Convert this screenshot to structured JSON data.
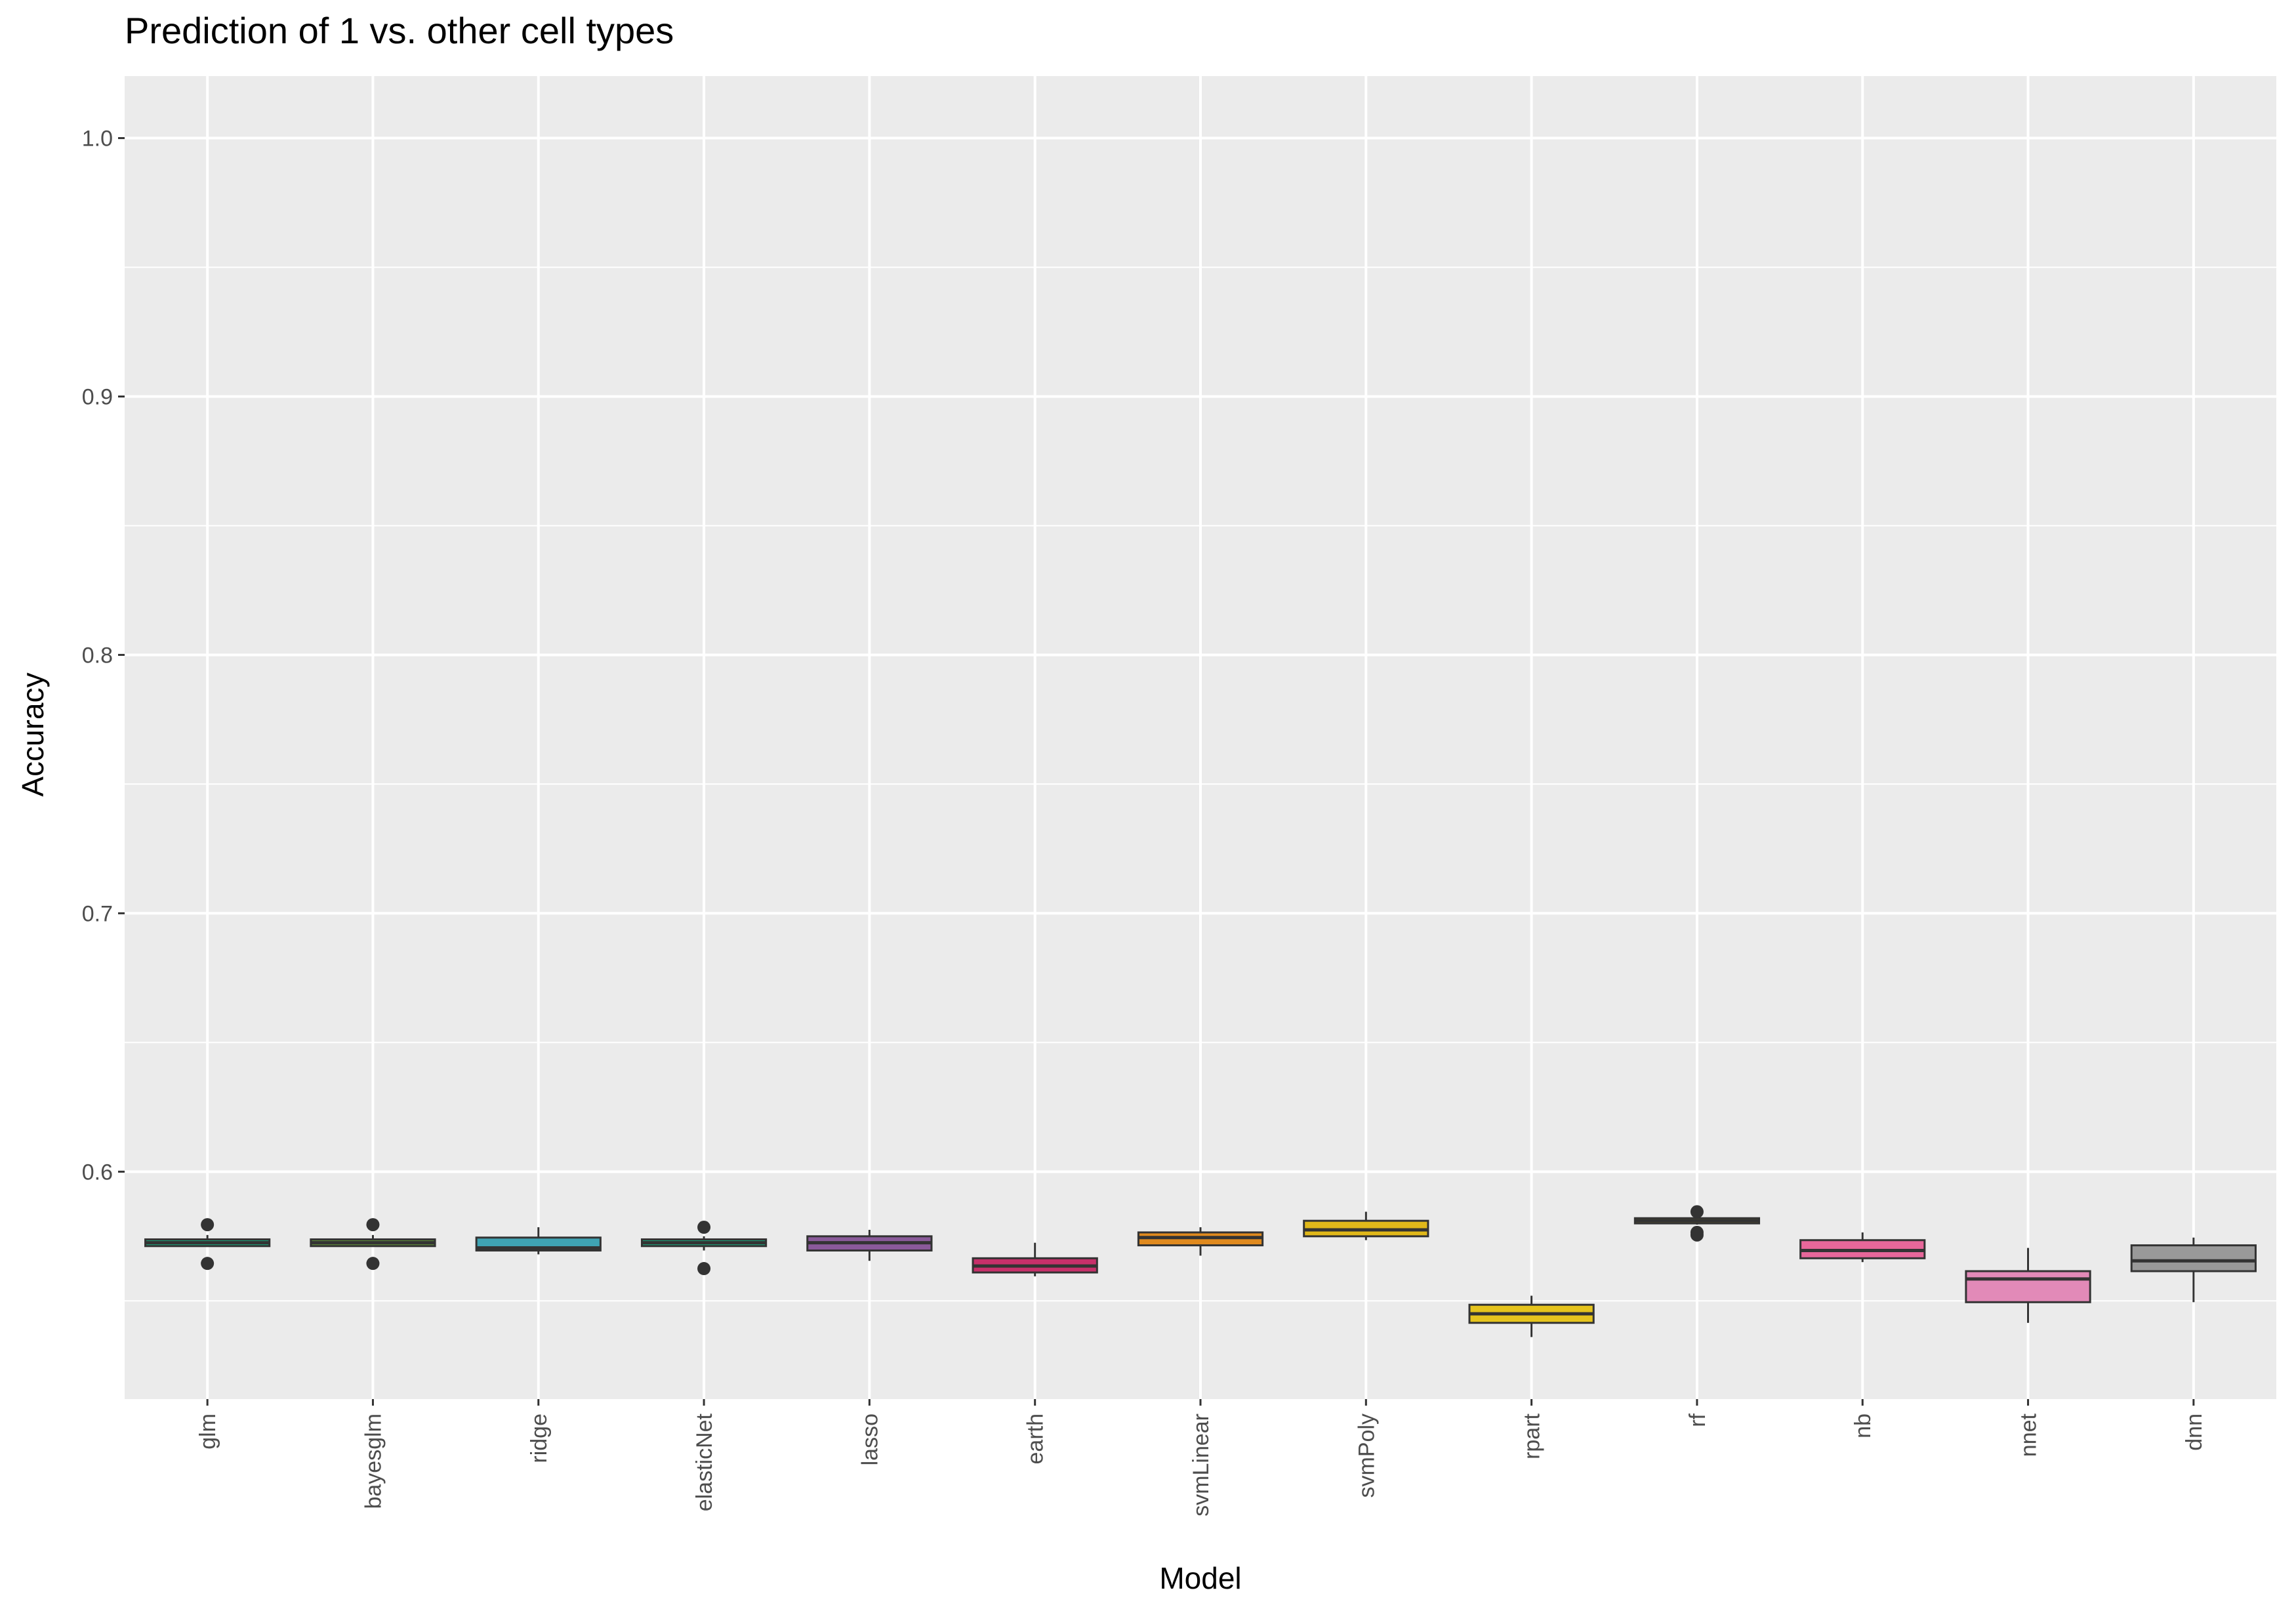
{
  "chart_data": {
    "type": "box",
    "title": "Prediction of 1 vs. other cell types",
    "xlabel": "Model",
    "ylabel": "Accuracy",
    "ylim": [
      0.512,
      1.024
    ],
    "yticks": [
      0.6,
      0.7,
      0.8,
      0.9,
      1.0
    ],
    "ytick_labels": [
      "0.6",
      "0.7",
      "0.8",
      "0.9",
      "1.0"
    ],
    "grid": true,
    "legend": "none",
    "colors": {
      "panel_bg": "#ebebeb",
      "grid_major": "#ffffff",
      "box_outline": "#333333"
    },
    "categories": [
      "glm",
      "bayesglm",
      "ridge",
      "elasticNet",
      "lasso",
      "earth",
      "svmLinear",
      "svmPoly",
      "rpart",
      "rf",
      "nb",
      "nnet",
      "dnn"
    ],
    "boxes": [
      {
        "label": "glm",
        "fill": "#1b9e77",
        "whisker_low": 0.571,
        "q1": 0.5712,
        "median": 0.5725,
        "q3": 0.5738,
        "whisker_high": 0.5755,
        "outliers": [
          0.5795,
          0.5645
        ]
      },
      {
        "label": "bayesglm",
        "fill": "#5d8a3a",
        "whisker_low": 0.571,
        "q1": 0.5712,
        "median": 0.5725,
        "q3": 0.5738,
        "whisker_high": 0.5755,
        "outliers": [
          0.5795,
          0.5645
        ]
      },
      {
        "label": "ridge",
        "fill": "#3fa3b3",
        "whisker_low": 0.568,
        "q1": 0.5695,
        "median": 0.5705,
        "q3": 0.5745,
        "whisker_high": 0.5785,
        "outliers": []
      },
      {
        "label": "elasticNet",
        "fill": "#1b9e77",
        "whisker_low": 0.5695,
        "q1": 0.5712,
        "median": 0.5725,
        "q3": 0.5738,
        "whisker_high": 0.575,
        "outliers": [
          0.5785,
          0.5625
        ]
      },
      {
        "label": "lasso",
        "fill": "#8a5a9a",
        "whisker_low": 0.5655,
        "q1": 0.5695,
        "median": 0.5725,
        "q3": 0.575,
        "whisker_high": 0.5775,
        "outliers": []
      },
      {
        "label": "earth",
        "fill": "#c7306a",
        "whisker_low": 0.5595,
        "q1": 0.561,
        "median": 0.5635,
        "q3": 0.5665,
        "whisker_high": 0.5725,
        "outliers": []
      },
      {
        "label": "svmLinear",
        "fill": "#e08a1e",
        "whisker_low": 0.5675,
        "q1": 0.5715,
        "median": 0.5745,
        "q3": 0.5765,
        "whisker_high": 0.5785,
        "outliers": []
      },
      {
        "label": "svmPoly",
        "fill": "#e0b81a",
        "whisker_low": 0.5735,
        "q1": 0.575,
        "median": 0.5775,
        "q3": 0.581,
        "whisker_high": 0.5845,
        "outliers": []
      },
      {
        "label": "rpart",
        "fill": "#e6c41d",
        "whisker_low": 0.536,
        "q1": 0.5415,
        "median": 0.545,
        "q3": 0.5485,
        "whisker_high": 0.552,
        "outliers": []
      },
      {
        "label": "rf",
        "fill": "#e6c41d",
        "whisker_low": 0.5795,
        "q1": 0.58,
        "median": 0.581,
        "q3": 0.582,
        "whisker_high": 0.583,
        "outliers": [
          0.5845,
          0.5765,
          0.5755
        ]
      },
      {
        "label": "nb",
        "fill": "#e7679a",
        "whisker_low": 0.565,
        "q1": 0.5665,
        "median": 0.5695,
        "q3": 0.5735,
        "whisker_high": 0.5765,
        "outliers": []
      },
      {
        "label": "nnet",
        "fill": "#e28ab8",
        "whisker_low": 0.5415,
        "q1": 0.5495,
        "median": 0.5585,
        "q3": 0.5615,
        "whisker_high": 0.5705,
        "outliers": []
      },
      {
        "label": "dnn",
        "fill": "#999999",
        "whisker_low": 0.5495,
        "q1": 0.5615,
        "median": 0.5655,
        "q3": 0.5715,
        "whisker_high": 0.5745,
        "outliers": []
      }
    ]
  }
}
